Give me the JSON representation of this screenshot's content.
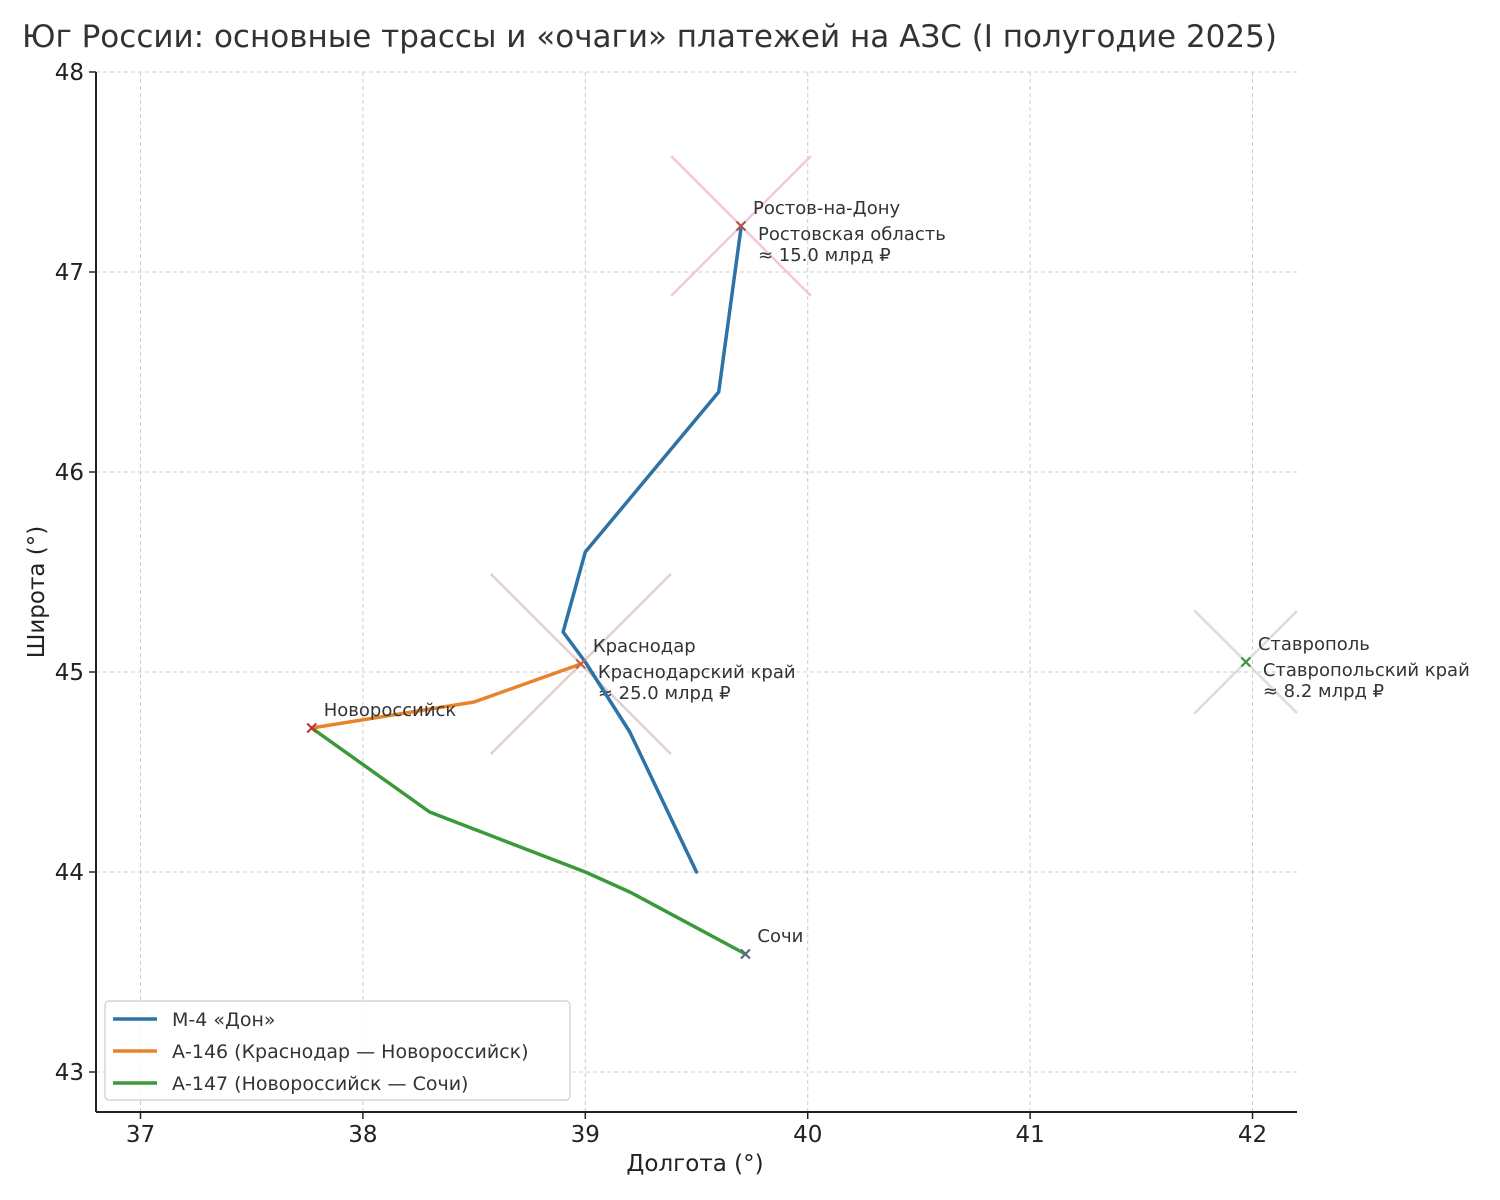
{
  "chart_data": {
    "type": "line",
    "title": "Юг России: основные трассы и «очаги» платежей на АЗС (I полугодие 2025)",
    "xlabel": "Долгота (°)",
    "ylabel": "Широта (°)",
    "xlim": [
      36.8,
      42.2
    ],
    "ylim": [
      42.8,
      48.0
    ],
    "xticks": [
      37,
      38,
      39,
      40,
      41,
      42
    ],
    "yticks": [
      43,
      44,
      45,
      46,
      47,
      48
    ],
    "grid": true,
    "legend_position": "lower-left",
    "series": [
      {
        "name": "М-4 «Дон»",
        "color": "#2c73a8",
        "points": [
          [
            39.5,
            44.0
          ],
          [
            39.2,
            44.7
          ],
          [
            39.0,
            45.05
          ],
          [
            38.9,
            45.2
          ],
          [
            39.0,
            45.6
          ],
          [
            39.6,
            46.4
          ],
          [
            39.7,
            47.22
          ]
        ]
      },
      {
        "name": "А-146 (Краснодар — Новороссийск)",
        "color": "#e8832a",
        "points": [
          [
            37.77,
            44.72
          ],
          [
            38.5,
            44.85
          ],
          [
            38.98,
            45.04
          ]
        ]
      },
      {
        "name": "А-147 (Новороссийск — Сочи)",
        "color": "#3a9a3a",
        "points": [
          [
            37.77,
            44.72
          ],
          [
            38.3,
            44.3
          ],
          [
            39.0,
            44.0
          ],
          [
            39.2,
            43.9
          ],
          [
            39.72,
            43.59
          ]
        ]
      }
    ],
    "cities": [
      {
        "name": "Ростов-на-Дону",
        "lon": 39.7,
        "lat": 47.23,
        "color": "#b0554a"
      },
      {
        "name": "Краснодар",
        "lon": 38.98,
        "lat": 45.04,
        "color": "#c8624a"
      },
      {
        "name": "Новороссийск",
        "lon": 37.77,
        "lat": 44.72,
        "color": "#b83a3a"
      },
      {
        "name": "Сочи",
        "lon": 39.72,
        "lat": 43.59,
        "color": "#5a6a7a"
      },
      {
        "name": "Ставрополь",
        "lon": 41.97,
        "lat": 45.05,
        "color": "#3a9a3a"
      }
    ],
    "regions": [
      {
        "name": "Ростовская область",
        "value_label": "≈ 15.0 млрд ₽",
        "value": 15.0,
        "lon": 39.7,
        "lat": 47.23,
        "color": "#f2c6de"
      },
      {
        "name": "Краснодарский край",
        "value_label": "≈ 25.0 млрд ₽",
        "value": 25.0,
        "lon": 38.98,
        "lat": 45.04,
        "color": "#e0d0cc"
      },
      {
        "name": "Ставропольский край",
        "value_label": "≈ 8.2 млрд ₽",
        "value": 8.2,
        "lon": 41.97,
        "lat": 45.05,
        "color": "#dcdcdc"
      }
    ]
  }
}
